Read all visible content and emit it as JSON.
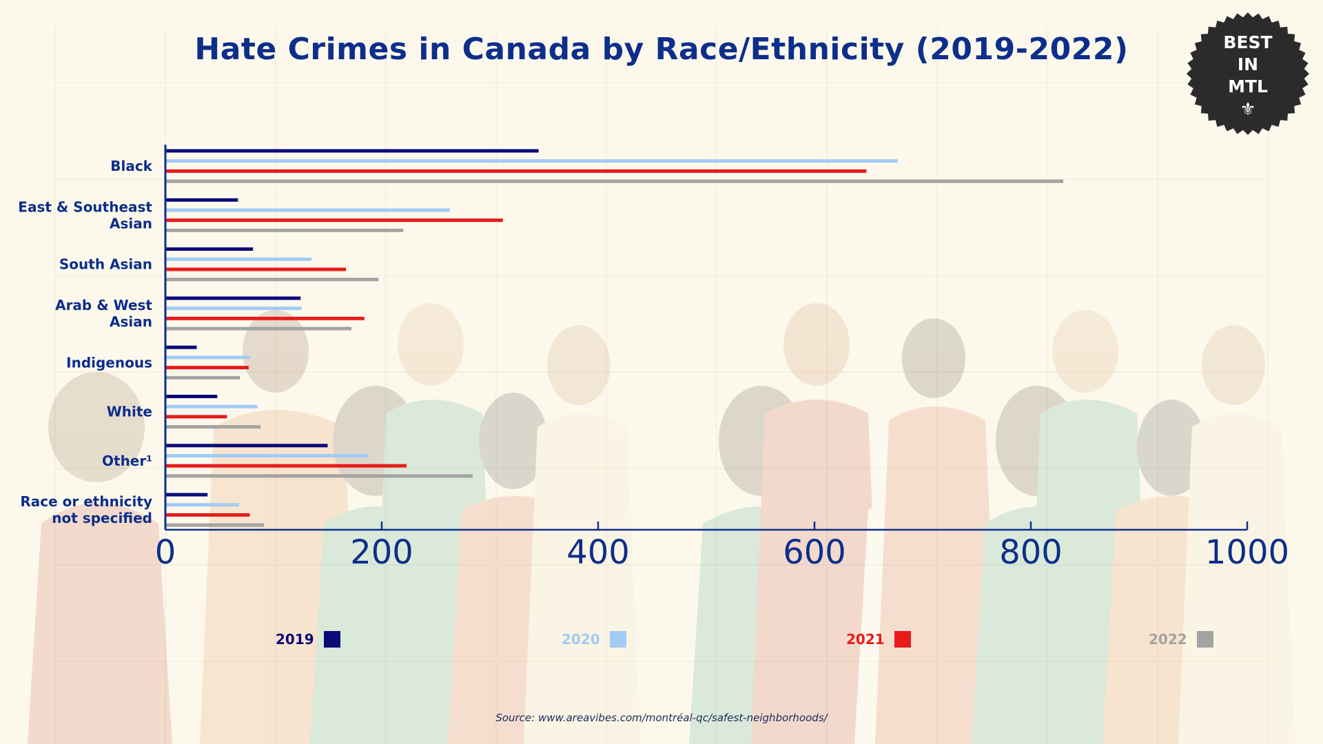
{
  "title": "Hate Crimes in Canada by Race/Ethnicity (2019-2022)",
  "badge": {
    "lines": [
      "BEST",
      "IN",
      "MTL"
    ],
    "symbol": "⚜"
  },
  "source": "Source: www.areavibes.com/montréal-qc/safest-neighborhoods/",
  "colors": {
    "title": "#0d2e8a",
    "axis": "#0d2e8a",
    "2019": "#0b0a78",
    "2020": "#a2cbf5",
    "2021": "#e81b1b",
    "2022": "#a3a3a3",
    "badge": "#2b2b2b",
    "background": "#fcf9ec"
  },
  "chart_data": {
    "type": "bar",
    "orientation": "horizontal",
    "title": "Hate Crimes in Canada by Race/Ethnicity (2019-2022)",
    "categories": [
      [
        "Black"
      ],
      [
        "East & Southeast",
        "Asian"
      ],
      [
        "South Asian"
      ],
      [
        "Arab & West",
        "Asian"
      ],
      [
        "Indigenous"
      ],
      [
        "White"
      ],
      [
        "Other¹"
      ],
      [
        "Race or ethnicity",
        "not specified"
      ]
    ],
    "series": [
      {
        "name": "2019",
        "values": [
          345,
          67,
          81,
          125,
          29,
          48,
          150,
          39
        ]
      },
      {
        "name": "2020",
        "values": [
          677,
          263,
          135,
          126,
          78,
          85,
          188,
          68
        ]
      },
      {
        "name": "2021",
        "values": [
          648,
          312,
          167,
          184,
          77,
          57,
          223,
          78
        ]
      },
      {
        "name": "2022",
        "values": [
          830,
          220,
          197,
          172,
          69,
          88,
          284,
          91
        ]
      }
    ],
    "xlim": [
      0,
      1000
    ],
    "xticks": [
      0,
      200,
      400,
      600,
      800,
      1000
    ],
    "xlabel": "",
    "ylabel": "",
    "grid": false,
    "legend": "bottom"
  }
}
